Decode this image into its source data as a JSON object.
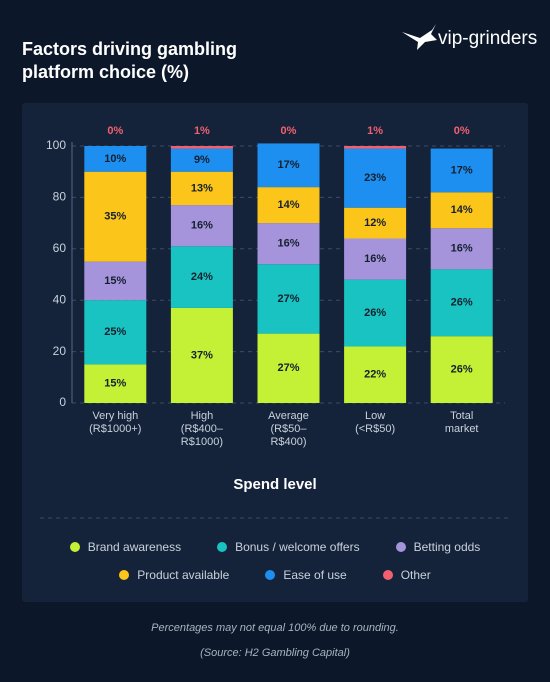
{
  "chart_data": {
    "type": "stacked_bar",
    "title": "Factors driving gambling platform choice (%)",
    "logo": "vip-grinders",
    "x_label": "Spend level",
    "categories": [
      "Very high\n(R$1000+)",
      "High\n(R$400–\nR$1000)",
      "Average\n(R$50–\nR$400)",
      "Low\n(<R$50)",
      "Total\nmarket"
    ],
    "series": [
      {
        "name": "Brand awareness",
        "color": "#c4f135",
        "values": [
          15,
          37,
          27,
          22,
          26
        ],
        "value_labels": [
          "15%",
          "37%",
          "27%",
          "22%",
          "26%"
        ]
      },
      {
        "name": "Bonus / welcome offers",
        "color": "#19c3c1",
        "values": [
          25,
          24,
          27,
          26,
          26
        ],
        "value_labels": [
          "25%",
          "24%",
          "27%",
          "26%",
          "26%"
        ]
      },
      {
        "name": "Betting odds",
        "color": "#a594dc",
        "values": [
          15,
          16,
          16,
          16,
          16
        ],
        "value_labels": [
          "15%",
          "16%",
          "16%",
          "16%",
          "16%"
        ]
      },
      {
        "name": "Product available",
        "color": "#fcc51a",
        "values": [
          35,
          13,
          14,
          12,
          14
        ],
        "value_labels": [
          "35%",
          "13%",
          "14%",
          "12%",
          "14%"
        ]
      },
      {
        "name": "Ease of use",
        "color": "#1c8ff0",
        "values": [
          10,
          9,
          17,
          23,
          17
        ],
        "value_labels": [
          "10%",
          "9%",
          "17%",
          "23%",
          "17%"
        ]
      },
      {
        "name": "Other",
        "color": "#f2606f",
        "values": [
          0,
          1,
          0,
          1,
          0
        ],
        "value_labels": [
          "0%",
          "1%",
          "0%",
          "1%",
          "0%"
        ]
      }
    ],
    "ylim": [
      0,
      100
    ],
    "yticks": [
      0,
      20,
      40,
      60,
      80,
      100
    ],
    "grid": true,
    "notes": [
      "Percentages may not equal 100% due to rounding.",
      "(Source: H2 Gambling Capital)"
    ]
  }
}
